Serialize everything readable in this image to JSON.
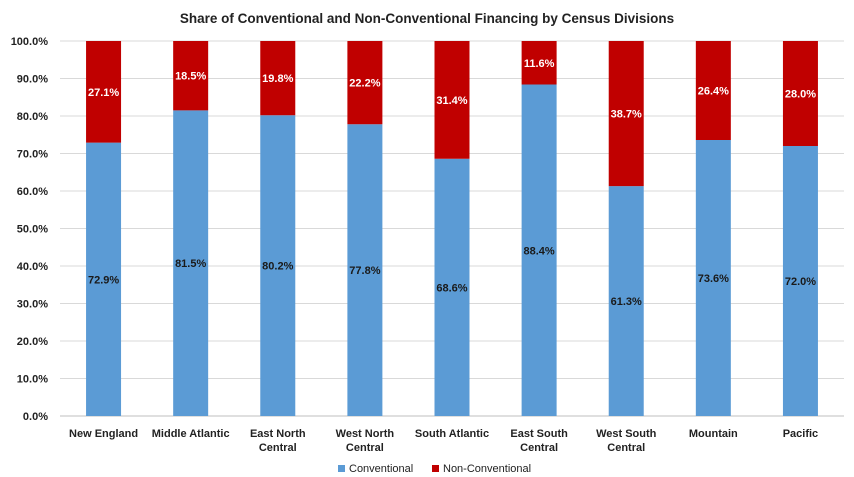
{
  "chart_data": {
    "type": "bar",
    "stacked": true,
    "title": "Share of Conventional and Non-Conventional Financing by Census Divisions",
    "categories": [
      [
        "New England"
      ],
      [
        "Middle Atlantic"
      ],
      [
        "East North",
        "Central"
      ],
      [
        "West North",
        "Central"
      ],
      [
        "South Atlantic"
      ],
      [
        "East South",
        "Central"
      ],
      [
        "West South",
        "Central"
      ],
      [
        "Mountain"
      ],
      [
        "Pacific"
      ]
    ],
    "series": [
      {
        "name": "Conventional",
        "color": "#5b9bd5",
        "values": [
          72.9,
          81.5,
          80.2,
          77.8,
          68.6,
          88.4,
          61.3,
          73.6,
          72.0
        ],
        "labels": [
          "72.9%",
          "81.5%",
          "80.2%",
          "77.8%",
          "68.6%",
          "88.4%",
          "61.3%",
          "73.6%",
          "72.0%"
        ],
        "label_color": "#1a1a1a"
      },
      {
        "name": "Non-Conventional",
        "color": "#c00000",
        "values": [
          27.1,
          18.5,
          19.8,
          22.2,
          31.4,
          11.6,
          38.7,
          26.4,
          28.0
        ],
        "labels": [
          "27.1%",
          "18.5%",
          "19.8%",
          "22.2%",
          "31.4%",
          "11.6%",
          "38.7%",
          "26.4%",
          "28.0%"
        ],
        "label_color": "#ffffff"
      }
    ],
    "yticks": [
      "0.0%",
      "10.0%",
      "20.0%",
      "30.0%",
      "40.0%",
      "50.0%",
      "60.0%",
      "70.0%",
      "80.0%",
      "90.0%",
      "100.0%"
    ],
    "ylim": [
      0,
      100
    ],
    "grid": true,
    "legend_position": "bottom"
  }
}
